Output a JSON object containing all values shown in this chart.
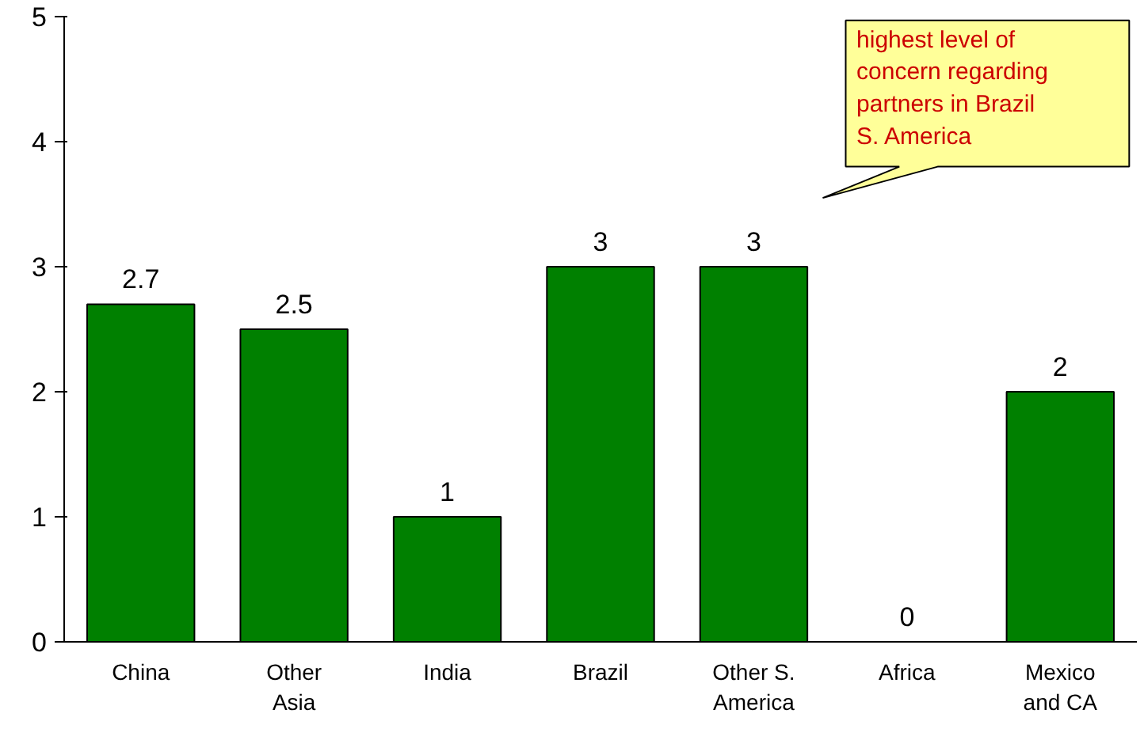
{
  "chart_data": {
    "type": "bar",
    "categories": [
      "China",
      "Other\nAsia",
      "India",
      "Brazil",
      "Other S.\nAmerica",
      "Africa",
      "Mexico\nand CA"
    ],
    "values": [
      2.7,
      2.5,
      1,
      3,
      3,
      0,
      2
    ],
    "color": "#008000",
    "ylim": [
      0,
      5
    ],
    "yticks": [
      0,
      1,
      2,
      3,
      4,
      5
    ],
    "data_labels": true,
    "grid": false,
    "annotations": [
      "highest level of concern regarding partners in Brazil S. America"
    ]
  }
}
